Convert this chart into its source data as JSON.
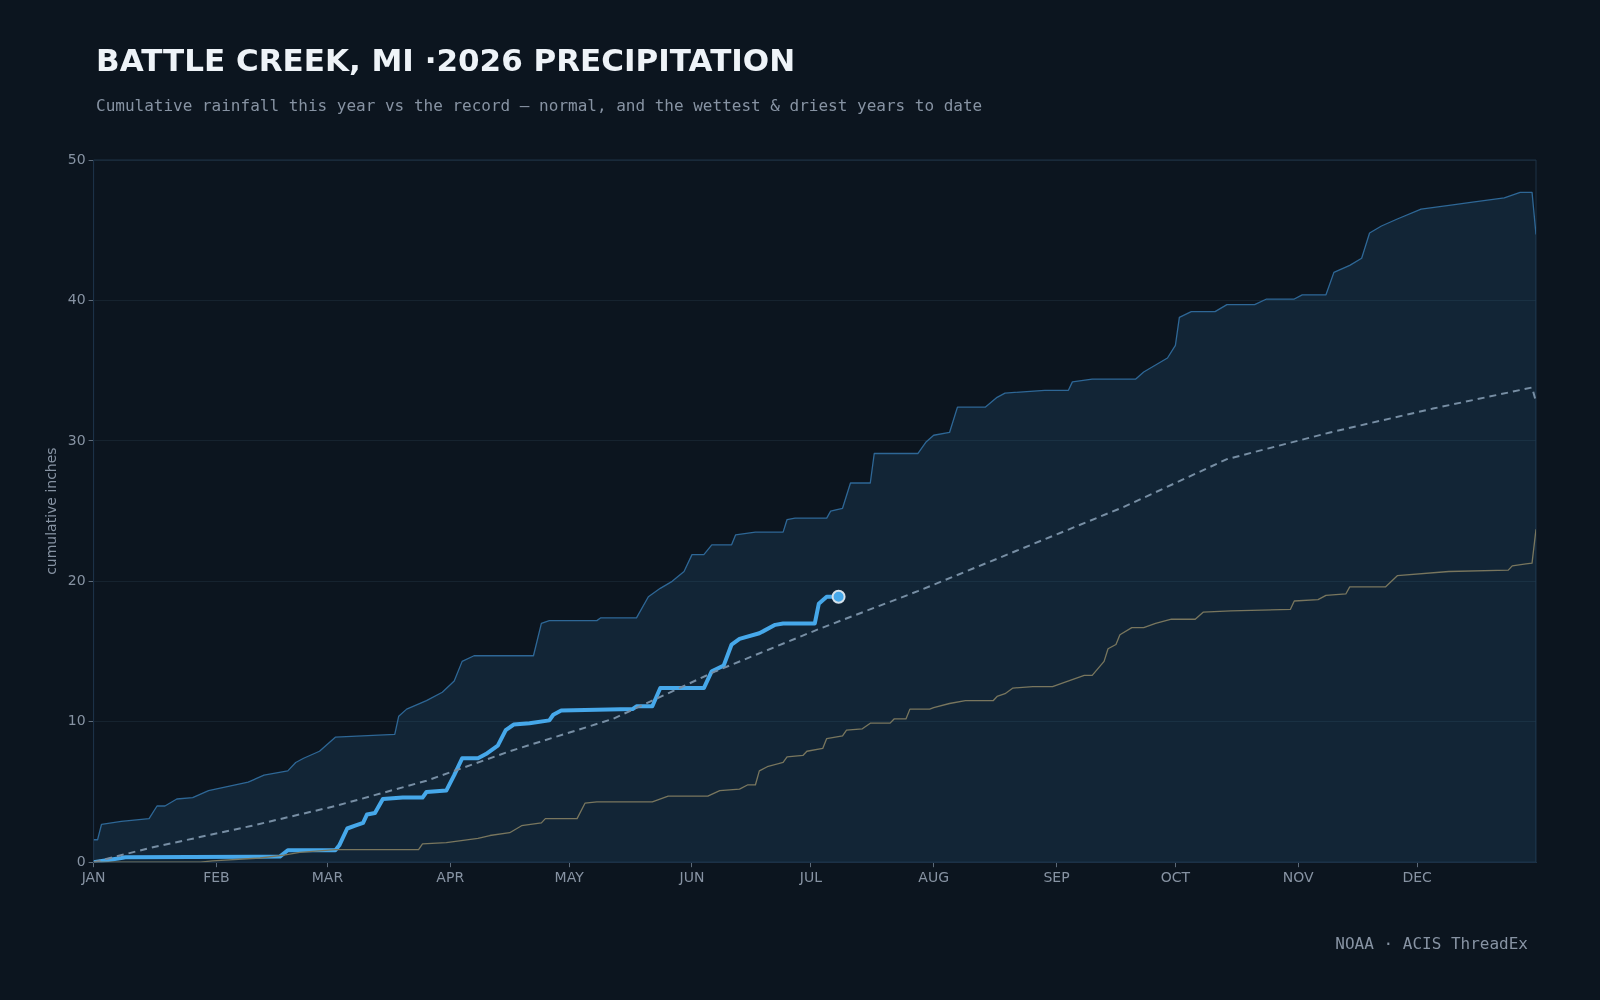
{
  "chart_data": {
    "type": "line",
    "title": "BATTLE CREEK, MI ·2026 PRECIPITATION",
    "subtitle": "Cumulative rainfall this year vs the record — normal, and the wettest & driest years to date",
    "ylabel": "cumulative inches",
    "annotations": [
      "NOAA · ACIS ThreadEx"
    ],
    "xlim": [
      "--01-01",
      "--12-31"
    ],
    "xticks": [
      {
        "value": "--01-01",
        "label": "JAN"
      },
      {
        "value": "--02-01",
        "label": "FEB"
      },
      {
        "value": "--03-01",
        "label": "MAR"
      },
      {
        "value": "--04-01",
        "label": "APR"
      },
      {
        "value": "--05-01",
        "label": "MAY"
      },
      {
        "value": "--06-01",
        "label": "JUN"
      },
      {
        "value": "--07-01",
        "label": "JUL"
      },
      {
        "value": "--08-01",
        "label": "AUG"
      },
      {
        "value": "--09-01",
        "label": "SEP"
      },
      {
        "value": "--10-01",
        "label": "OCT"
      },
      {
        "value": "--11-01",
        "label": "NOV"
      },
      {
        "value": "--12-01",
        "label": "DEC"
      }
    ],
    "ylim": [
      0,
      50
    ],
    "yticks": [
      0,
      10,
      20,
      30,
      40,
      50
    ],
    "grid": "y",
    "legend": false,
    "marker": "none",
    "series": [
      {
        "type": "area",
        "color": "#2e6796",
        "line_style": "solid",
        "x": [
          "--01-01",
          "--01-02",
          "--01-03",
          "--01-08",
          "--01-15",
          "--01-17",
          "--01-19",
          "--01-22",
          "--01-26",
          "--01-30",
          "--02-04",
          "--02-09",
          "--02-13",
          "--02-19",
          "--02-21",
          "--02-23",
          "--02-27",
          "--03-03",
          "--03-18",
          "--03-19",
          "--03-21",
          "--03-26",
          "--03-30",
          "--04-02",
          "--04-04",
          "--04-07",
          "--04-22",
          "--04-24",
          "--04-26",
          "--05-08",
          "--05-09",
          "--05-18",
          "--05-21",
          "--05-24",
          "--05-27",
          "--05-30",
          "--06-01",
          "--06-04",
          "--06-06",
          "--06-11",
          "--06-12",
          "--06-17",
          "--06-24",
          "--06-25",
          "--06-27",
          "--07-05",
          "--07-06",
          "--07-09",
          "--07-11",
          "--07-16",
          "--07-17",
          "--07-28",
          "--07-30",
          "--08-01",
          "--08-05",
          "--08-07",
          "--08-14",
          "--08-17",
          "--08-19",
          "--08-29",
          "--09-04",
          "--09-05",
          "--09-10",
          "--09-21",
          "--09-23",
          "--09-26",
          "--09-29",
          "--10-01",
          "--10-02",
          "--10-05",
          "--10-11",
          "--10-14",
          "--10-21",
          "--10-24",
          "--10-31",
          "--11-02",
          "--11-08",
          "--11-10",
          "--11-14",
          "--11-17",
          "--11-19",
          "--11-22",
          "--11-26",
          "--12-02",
          "--12-10",
          "--12-15",
          "--12-23",
          "--12-27",
          "--12-30",
          "--12-31"
        ],
        "values": [
          1.6,
          1.6,
          2.7,
          2.9,
          3.1,
          4.0,
          4.0,
          4.5,
          4.6,
          5.1,
          5.4,
          5.7,
          6.2,
          6.5,
          7.1,
          7.4,
          7.9,
          8.9,
          9.1,
          10.4,
          10.9,
          11.5,
          12.1,
          12.9,
          14.3,
          14.7,
          14.7,
          17.0,
          17.2,
          17.2,
          17.4,
          17.4,
          18.9,
          19.5,
          20.0,
          20.7,
          21.9,
          21.9,
          22.6,
          22.6,
          23.3,
          23.5,
          23.5,
          24.4,
          24.5,
          24.5,
          25.0,
          25.2,
          27.0,
          27.0,
          29.1,
          29.1,
          29.9,
          30.4,
          30.6,
          32.4,
          32.4,
          33.1,
          33.4,
          33.6,
          33.6,
          34.2,
          34.4,
          34.4,
          34.9,
          35.4,
          35.9,
          36.8,
          38.8,
          39.2,
          39.2,
          39.7,
          39.7,
          40.1,
          40.1,
          40.4,
          40.4,
          42.0,
          42.5,
          43.0,
          44.8,
          45.3,
          45.8,
          46.5,
          46.8,
          47.0,
          47.3,
          47.7,
          47.7,
          44.7
        ]
      },
      {
        "color": "#8c7a50",
        "line_style": "solid",
        "x": [
          "--01-01",
          "--01-28",
          "--01-31",
          "--02-12",
          "--02-18",
          "--02-22",
          "--03-03",
          "--03-24",
          "--03-25",
          "--03-31",
          "--04-08",
          "--04-11",
          "--04-16",
          "--04-19",
          "--04-24",
          "--04-25",
          "--05-03",
          "--05-05",
          "--05-08",
          "--05-22",
          "--05-26",
          "--06-05",
          "--06-08",
          "--06-13",
          "--06-15",
          "--06-17",
          "--06-18",
          "--06-20",
          "--06-24",
          "--06-25",
          "--06-29",
          "--06-30",
          "--07-04",
          "--07-05",
          "--07-09",
          "--07-10",
          "--07-14",
          "--07-16",
          "--07-21",
          "--07-22",
          "--07-25",
          "--07-26",
          "--07-31",
          "--08-01",
          "--08-05",
          "--08-09",
          "--08-16",
          "--08-17",
          "--08-19",
          "--08-21",
          "--08-26",
          "--08-31",
          "--09-03",
          "--09-08",
          "--09-10",
          "--09-13",
          "--09-14",
          "--09-16",
          "--09-17",
          "--09-20",
          "--09-23",
          "--09-26",
          "--09-30",
          "--10-06",
          "--10-08",
          "--10-15",
          "--10-30",
          "--10-31",
          "--11-06",
          "--11-08",
          "--11-13",
          "--11-14",
          "--11-23",
          "--11-26",
          "--12-09",
          "--12-24",
          "--12-25",
          "--12-30",
          "--12-31"
        ],
        "values": [
          0,
          0,
          0.1,
          0.3,
          0.5,
          0.7,
          0.9,
          0.9,
          1.3,
          1.4,
          1.7,
          1.9,
          2.1,
          2.6,
          2.8,
          3.1,
          3.1,
          4.2,
          4.3,
          4.3,
          4.7,
          4.7,
          5.1,
          5.2,
          5.5,
          5.5,
          6.5,
          6.8,
          7.1,
          7.5,
          7.6,
          7.9,
          8.1,
          8.8,
          9.0,
          9.4,
          9.5,
          9.9,
          9.9,
          10.2,
          10.2,
          10.9,
          10.9,
          11.0,
          11.3,
          11.5,
          11.5,
          11.8,
          12.0,
          12.4,
          12.5,
          12.5,
          12.8,
          13.3,
          13.3,
          14.3,
          15.2,
          15.5,
          16.2,
          16.7,
          16.7,
          17.0,
          17.3,
          17.3,
          17.8,
          17.9,
          18.0,
          18.6,
          18.7,
          19.0,
          19.1,
          19.6,
          19.6,
          20.4,
          20.7,
          20.8,
          21.1,
          21.3,
          23.7
        ]
      },
      {
        "color": "#8a98a8",
        "line_style": "dashed",
        "x": [
          "--01-01",
          "--01-15",
          "--02-10",
          "--03-03",
          "--03-26",
          "--04-16",
          "--05-12",
          "--06-07",
          "--07-03",
          "--07-28",
          "--08-23",
          "--09-18",
          "--10-14",
          "--11-09",
          "--12-05",
          "--12-30",
          "--12-31"
        ],
        "values": [
          0,
          1.0,
          2.6,
          4.0,
          5.8,
          7.9,
          10.2,
          13.6,
          16.6,
          19.3,
          22.3,
          25.3,
          28.7,
          30.6,
          32.3,
          33.8,
          32.8
        ]
      },
      {
        "color": "#4db8ff",
        "line_style": "solid",
        "x": [
          "--01-01",
          "--01-08",
          "--01-09",
          "--02-17",
          "--02-19",
          "--03-03",
          "--03-04",
          "--03-06",
          "--03-08",
          "--03-10",
          "--03-11",
          "--03-13",
          "--03-15",
          "--03-20",
          "--03-25",
          "--03-26",
          "--03-31",
          "--04-02",
          "--04-04",
          "--04-08",
          "--04-10",
          "--04-13",
          "--04-15",
          "--04-17",
          "--04-21",
          "--04-26",
          "--04-27",
          "--04-29",
          "--05-17",
          "--05-18",
          "--05-22",
          "--05-24",
          "--06-04",
          "--06-06",
          "--06-09",
          "--06-11",
          "--06-13",
          "--06-18",
          "--06-22",
          "--06-24",
          "--07-02",
          "--07-03",
          "--07-05",
          "--07-08"
        ],
        "values": [
          0,
          0.3,
          0.35,
          0.4,
          0.85,
          0.85,
          1.2,
          2.4,
          2.6,
          2.8,
          3.4,
          3.5,
          4.5,
          4.6,
          4.6,
          5.0,
          5.1,
          6.2,
          7.4,
          7.4,
          7.7,
          8.3,
          9.4,
          9.8,
          9.9,
          10.1,
          10.5,
          10.8,
          10.9,
          11.1,
          11.1,
          12.4,
          12.4,
          13.6,
          14.0,
          15.5,
          15.9,
          16.3,
          16.9,
          17.0,
          17.0,
          18.4,
          18.9,
          18.9
        ]
      }
    ]
  }
}
